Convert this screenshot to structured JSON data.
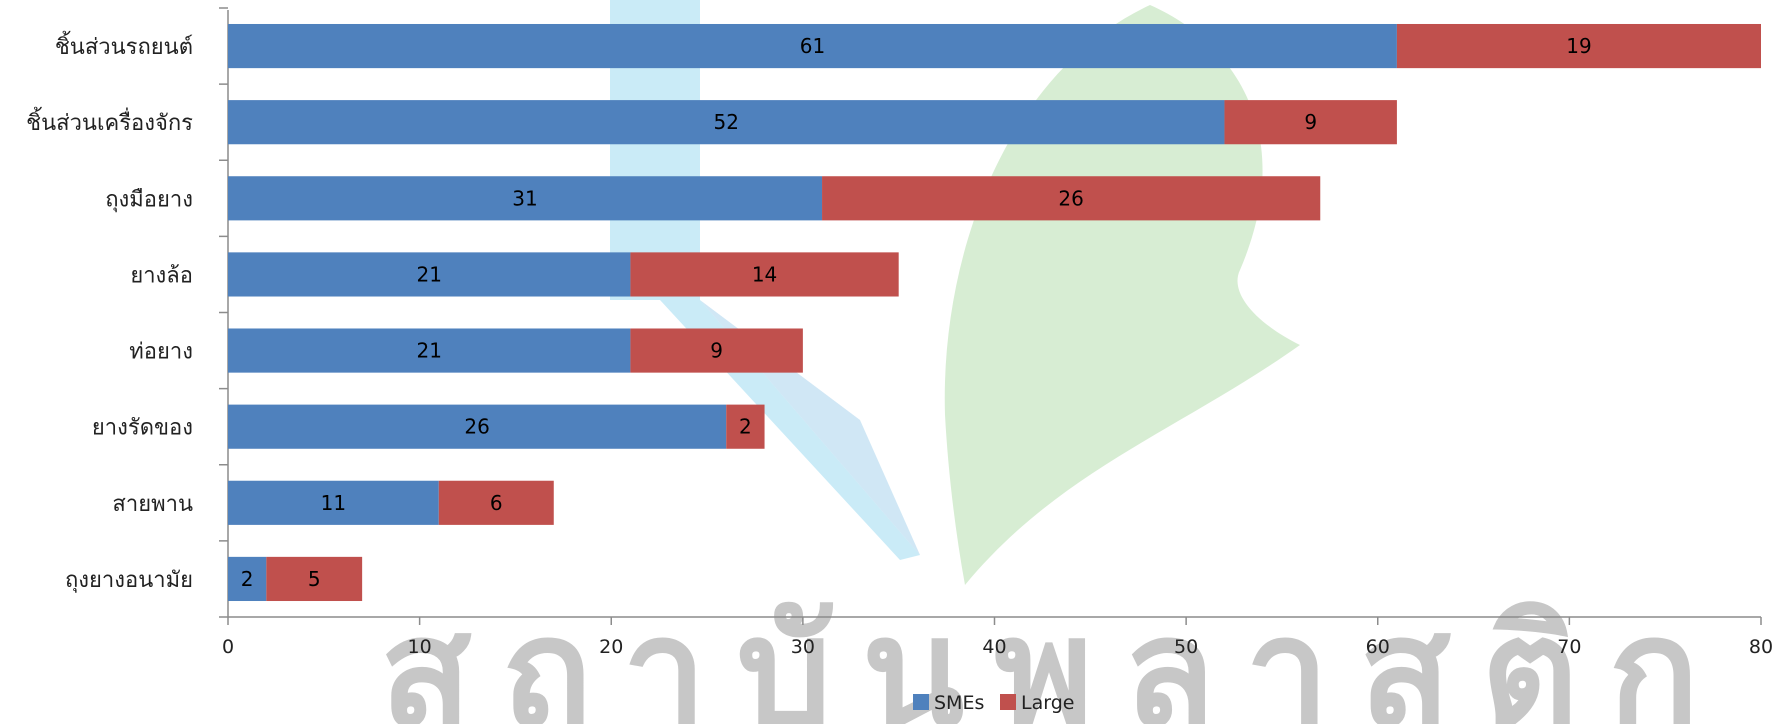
{
  "chart_data": {
    "type": "bar",
    "orientation": "horizontal",
    "stacked": true,
    "categories": [
      "ชิ้นส่วนรถยนต์",
      "ชิ้นส่วนเครื่องจักร",
      "ถุงมือยาง",
      "ยางล้อ",
      "ท่อยาง",
      "ยางรัดของ",
      "สายพาน",
      "ถุงยางอนามัย"
    ],
    "series": [
      {
        "name": "SMEs",
        "values": [
          61,
          52,
          31,
          21,
          21,
          26,
          11,
          2
        ],
        "color": "#4f81bd"
      },
      {
        "name": "Large",
        "values": [
          19,
          9,
          26,
          14,
          9,
          2,
          6,
          5
        ],
        "color": "#c0504d"
      }
    ],
    "xlim": [
      0,
      80
    ],
    "xticks": [
      0,
      10,
      20,
      30,
      40,
      50,
      60,
      70,
      80
    ],
    "grid": false,
    "legend_position": "bottom",
    "title": "",
    "xlabel": "",
    "ylabel": ""
  },
  "watermark": {
    "text": "สถาบันพลาสติก",
    "colors": {
      "light_blue": "#b8e4f4",
      "green": "#cde9c8"
    }
  }
}
